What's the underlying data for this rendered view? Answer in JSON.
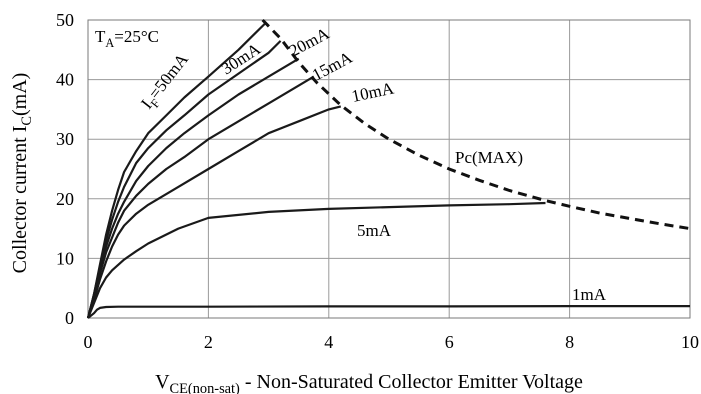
{
  "chart_data": {
    "type": "line",
    "xlabel": {
      "main": "V",
      "sub": "CE(non-sat)",
      "rest": " - Non-Saturated Collector Emitter Voltage"
    },
    "ylabel": {
      "main": "Collector current I",
      "sub": "C",
      "rest": "(mA)"
    },
    "xlim": [
      0,
      10
    ],
    "ylim": [
      0,
      50
    ],
    "x_ticks": [
      0,
      2,
      4,
      6,
      8,
      10
    ],
    "y_ticks": [
      0,
      10,
      20,
      30,
      40,
      50
    ],
    "grid": true,
    "condition_label": {
      "main": "T",
      "sub": "A",
      "rest": "=25°C"
    },
    "series": [
      {
        "name": "I_F=50mA",
        "label": {
          "main": "I",
          "sub": "F",
          "rest": "=50mA"
        },
        "x": [
          0,
          0.1,
          0.2,
          0.3,
          0.4,
          0.5,
          0.6,
          0.8,
          1.0,
          1.3,
          1.6,
          2.0,
          2.5,
          2.95
        ],
        "y": [
          0,
          4,
          9,
          14,
          18,
          21.5,
          24.5,
          28,
          31,
          34,
          37,
          40.5,
          45,
          49.5
        ]
      },
      {
        "name": "30mA",
        "label": {
          "main": "30mA"
        },
        "x": [
          0,
          0.1,
          0.2,
          0.3,
          0.4,
          0.5,
          0.6,
          0.8,
          1.0,
          1.3,
          1.6,
          2.0,
          2.5,
          3.0,
          3.2
        ],
        "y": [
          0,
          4,
          8.5,
          13,
          16.5,
          19.5,
          22,
          26,
          28.5,
          31.5,
          34,
          37.5,
          41,
          44.5,
          46.5
        ]
      },
      {
        "name": "20mA",
        "label": {
          "main": "20mA"
        },
        "x": [
          0,
          0.1,
          0.2,
          0.3,
          0.4,
          0.5,
          0.6,
          0.8,
          1.0,
          1.3,
          1.6,
          2.0,
          2.5,
          3.0,
          3.5
        ],
        "y": [
          0,
          3.5,
          8,
          12,
          15,
          17.5,
          19.5,
          23,
          25.5,
          28.5,
          31,
          34,
          37.5,
          40.5,
          43.5
        ]
      },
      {
        "name": "15mA",
        "label": {
          "main": "15mA"
        },
        "x": [
          0,
          0.1,
          0.2,
          0.3,
          0.4,
          0.5,
          0.6,
          0.8,
          1.0,
          1.3,
          1.6,
          2.0,
          2.5,
          3.0,
          3.5,
          3.75
        ],
        "y": [
          0,
          3.5,
          7.5,
          11,
          13.5,
          16,
          18,
          20.5,
          22.5,
          25,
          27,
          30,
          33,
          36,
          39,
          40.5
        ]
      },
      {
        "name": "10mA",
        "label": {
          "main": "10mA"
        },
        "x": [
          0,
          0.1,
          0.2,
          0.3,
          0.4,
          0.5,
          0.6,
          0.8,
          1.0,
          1.5,
          2.0,
          2.5,
          3.0,
          3.5,
          4.0,
          4.2
        ],
        "y": [
          0,
          3,
          6.5,
          9.5,
          12,
          14,
          15.5,
          17.5,
          19,
          22,
          25,
          28,
          31,
          33,
          35,
          35.5
        ]
      },
      {
        "name": "5mA",
        "label": {
          "main": "5mA"
        },
        "x": [
          0,
          0.1,
          0.2,
          0.3,
          0.4,
          0.6,
          0.8,
          1.0,
          1.5,
          2.0,
          3.0,
          4.0,
          5.0,
          6.0,
          7.0,
          7.6
        ],
        "y": [
          0,
          2.5,
          5,
          6.8,
          8,
          9.8,
          11.2,
          12.5,
          15,
          16.8,
          17.8,
          18.3,
          18.6,
          18.9,
          19.1,
          19.3
        ]
      },
      {
        "name": "1mA",
        "label": {
          "main": "1mA"
        },
        "x": [
          0,
          0.1,
          0.15,
          0.2,
          0.3,
          0.5,
          1,
          2,
          4,
          6,
          8,
          10
        ],
        "y": [
          0,
          0.8,
          1.4,
          1.7,
          1.85,
          1.9,
          1.9,
          1.9,
          1.95,
          1.95,
          2.0,
          2.0
        ]
      }
    ],
    "pc_max": {
      "name": "Pc(MAX)",
      "label": {
        "main": "Pc(MAX)"
      },
      "style": "dashed",
      "x": [
        2.9,
        3.2,
        3.5,
        3.8,
        4.2,
        4.6,
        5.0,
        5.5,
        6.0,
        6.5,
        7.0,
        7.6,
        8.0,
        8.5,
        9.0,
        9.5,
        10
      ],
      "y": [
        50,
        46.9,
        42.9,
        39.5,
        35.7,
        32.6,
        30,
        27.3,
        25,
        23.1,
        21.4,
        19.7,
        18.75,
        17.6,
        16.7,
        15.8,
        15
      ]
    }
  }
}
